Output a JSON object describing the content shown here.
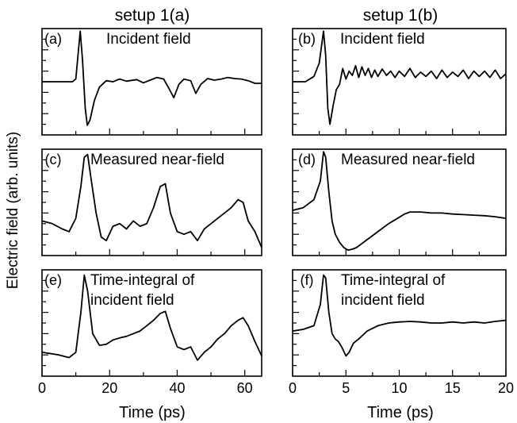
{
  "figure": {
    "ylabel": "Electric field (arb. units)",
    "columns": [
      {
        "title": "setup 1(a)",
        "xlabel": "Time (ps)"
      },
      {
        "title": "setup 1(b)",
        "xlabel": "Time (ps)"
      }
    ]
  },
  "chart_data": [
    {
      "type": "line",
      "panel": "(a)",
      "title": "Incident field",
      "column": "setup 1(a)",
      "xlim": [
        0,
        65
      ],
      "ylim": [
        -1,
        1
      ],
      "xlabel": "",
      "ylabel": "",
      "x": [
        0,
        9,
        10,
        10.8,
        11.3,
        12,
        12.8,
        13.4,
        14.2,
        15.5,
        17,
        19,
        21,
        23,
        25,
        28,
        30,
        32,
        34,
        36,
        37.5,
        39,
        40.5,
        42,
        44,
        45.5,
        47,
        49,
        51,
        53,
        55,
        57,
        59,
        61,
        63,
        65
      ],
      "values": [
        0,
        0,
        0.05,
        0.6,
        0.95,
        0.4,
        -0.5,
        -0.82,
        -0.72,
        -0.35,
        -0.1,
        0.02,
        0,
        0.05,
        0.01,
        0.04,
        -0.02,
        0.03,
        0.08,
        0.05,
        -0.12,
        -0.3,
        -0.05,
        0.05,
        0.02,
        -0.22,
        -0.05,
        0.06,
        0.03,
        0.05,
        0.08,
        0.06,
        0.05,
        0.02,
        -0.03,
        -0.03
      ]
    },
    {
      "type": "line",
      "panel": "(b)",
      "title": "Incident field",
      "column": "setup 1(b)",
      "xlim": [
        0,
        20
      ],
      "ylim": [
        -1,
        1
      ],
      "xlabel": "",
      "ylabel": "",
      "x": [
        0,
        1.2,
        2.0,
        2.5,
        2.9,
        3.1,
        3.3,
        3.5,
        3.8,
        4.1,
        4.4,
        4.7,
        5.0,
        5.3,
        5.6,
        5.9,
        6.2,
        6.5,
        6.8,
        7.1,
        7.4,
        7.7,
        8.0,
        8.4,
        8.8,
        9.2,
        9.6,
        10,
        10.5,
        11,
        11.5,
        12,
        12.5,
        13,
        13.5,
        14,
        14.5,
        15,
        15.5,
        16,
        16.5,
        17,
        17.5,
        18,
        18.5,
        19,
        19.5,
        20
      ],
      "values": [
        0,
        0,
        0.1,
        0.35,
        0.95,
        0.5,
        -0.5,
        -0.8,
        -0.45,
        -0.15,
        -0.05,
        0.25,
        0.05,
        0.2,
        0.12,
        0.3,
        0.08,
        0.28,
        0.12,
        0.25,
        0.08,
        0.22,
        0.1,
        0.24,
        0.12,
        0.2,
        0.08,
        0.2,
        0.1,
        0.25,
        0.08,
        0.18,
        0.1,
        0.2,
        0.06,
        0.22,
        0.08,
        0.18,
        0.1,
        0.22,
        0.06,
        0.2,
        0.1,
        0.2,
        0.08,
        0.22,
        0.06,
        0.15
      ]
    },
    {
      "type": "line",
      "panel": "(c)",
      "title": "Measured near-field",
      "column": "setup 1(a)",
      "xlim": [
        0,
        65
      ],
      "ylim": [
        -1,
        1
      ],
      "xlabel": "",
      "ylabel": "",
      "x": [
        0,
        3,
        6,
        8,
        10,
        11.5,
        12.5,
        13.5,
        14.5,
        16,
        17.5,
        19,
        21,
        23,
        25,
        27,
        29,
        31,
        33,
        35,
        36.5,
        38,
        40,
        42,
        44,
        46,
        48,
        50,
        52,
        54,
        56,
        58,
        59.5,
        61,
        63,
        65
      ],
      "values": [
        -0.35,
        -0.4,
        -0.5,
        -0.55,
        -0.3,
        0.3,
        0.85,
        0.9,
        0.45,
        -0.2,
        -0.65,
        -0.72,
        -0.45,
        -0.4,
        -0.5,
        -0.35,
        -0.45,
        -0.4,
        -0.1,
        0.3,
        0.35,
        -0.2,
        -0.55,
        -0.6,
        -0.55,
        -0.72,
        -0.5,
        -0.4,
        -0.3,
        -0.2,
        -0.1,
        0.05,
        0.0,
        -0.35,
        -0.55,
        -0.85
      ]
    },
    {
      "type": "line",
      "panel": "(d)",
      "title": "Measured near-field",
      "column": "setup 1(b)",
      "xlim": [
        0,
        20
      ],
      "ylim": [
        -1,
        1
      ],
      "xlabel": "",
      "ylabel": "",
      "x": [
        0,
        1,
        2,
        2.6,
        2.9,
        3.1,
        3.4,
        3.7,
        4.0,
        4.4,
        4.8,
        5.2,
        5.6,
        6,
        7,
        8,
        9,
        10,
        10.5,
        11,
        12,
        13,
        14,
        15,
        16,
        17,
        18,
        19,
        20
      ],
      "values": [
        -0.15,
        -0.1,
        0.05,
        0.4,
        0.95,
        0.85,
        0.2,
        -0.35,
        -0.6,
        -0.75,
        -0.85,
        -0.9,
        -0.88,
        -0.85,
        -0.7,
        -0.55,
        -0.4,
        -0.28,
        -0.22,
        -0.18,
        -0.18,
        -0.2,
        -0.2,
        -0.22,
        -0.23,
        -0.24,
        -0.25,
        -0.27,
        -0.3
      ]
    },
    {
      "type": "line",
      "panel": "(e)",
      "title": "Time-integral of incident field",
      "column": "setup 1(a)",
      "xlim": [
        0,
        65
      ],
      "ylim": [
        -1,
        1
      ],
      "xlabel": "",
      "ylabel": "",
      "x": [
        0,
        5,
        8,
        10,
        11.5,
        12.5,
        13.5,
        15,
        17,
        19,
        21,
        23,
        25,
        27,
        29,
        31,
        33,
        35,
        36.5,
        38,
        40,
        42,
        44,
        46,
        48,
        50,
        52,
        54,
        56,
        58,
        59.5,
        61,
        63,
        65
      ],
      "values": [
        -0.55,
        -0.6,
        -0.65,
        -0.55,
        0.2,
        0.9,
        0.6,
        -0.2,
        -0.42,
        -0.4,
        -0.32,
        -0.28,
        -0.25,
        -0.2,
        -0.15,
        -0.05,
        0.05,
        0.18,
        0.22,
        -0.1,
        -0.45,
        -0.5,
        -0.45,
        -0.7,
        -0.55,
        -0.45,
        -0.3,
        -0.2,
        -0.05,
        0.05,
        0.1,
        -0.05,
        -0.35,
        -0.62
      ]
    },
    {
      "type": "line",
      "panel": "(f)",
      "title": "Time-integral of incident field",
      "column": "setup 1(b)",
      "xlim": [
        0,
        20
      ],
      "ylim": [
        -1,
        1
      ],
      "xlabel": "",
      "ylabel": "",
      "x": [
        0,
        1,
        2,
        2.6,
        2.9,
        3.1,
        3.4,
        3.7,
        4.0,
        4.3,
        4.6,
        5.0,
        5.3,
        5.7,
        6.2,
        7,
        8,
        9,
        10,
        11,
        12,
        13,
        14,
        15,
        16,
        17,
        18,
        19,
        20
      ],
      "values": [
        -0.15,
        -0.12,
        -0.05,
        0.35,
        0.9,
        0.85,
        0.2,
        -0.2,
        -0.3,
        -0.35,
        -0.45,
        -0.62,
        -0.55,
        -0.38,
        -0.3,
        -0.15,
        -0.05,
        0.0,
        0.02,
        0.03,
        0.02,
        0.0,
        0.0,
        0.02,
        0.0,
        0.02,
        0.0,
        0.03,
        0.05
      ]
    }
  ]
}
